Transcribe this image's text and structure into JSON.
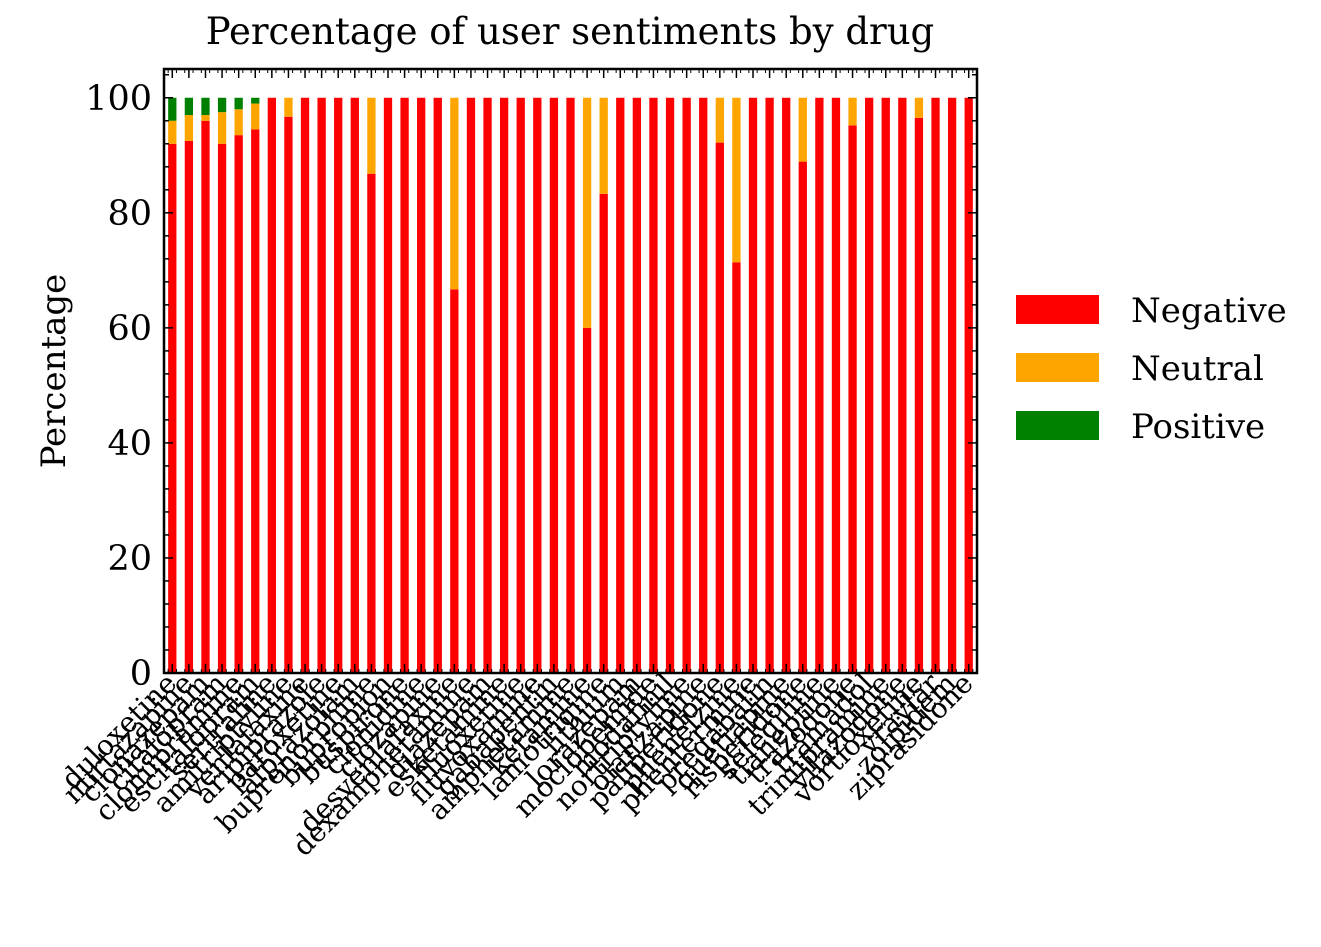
{
  "chart_data": {
    "type": "bar",
    "stacked": true,
    "title": "Percentage of user sentiments by drug",
    "xlabel": "",
    "ylabel": "Percentage",
    "ylim": [
      0,
      105
    ],
    "yticks": [
      0,
      20,
      40,
      60,
      80,
      100
    ],
    "grid": false,
    "legend_position": "right",
    "categories": [
      "duloxetine",
      "mirtazapine",
      "clonazepam",
      "citalopram",
      "clomipramine",
      "escitalopram",
      "sertraline",
      "amitriptyline",
      "venlafaxine",
      "aripiprazole",
      "paroxetine",
      "alprazolam",
      "buprenorphine",
      "bupropion",
      "buspirone",
      "clonidine",
      "clozapine",
      "desvenlafaxine",
      "dexamphetamine",
      "diazepam",
      "esketamine",
      "fluoxetine",
      "fluvoxamine",
      "gabapentin",
      "amphetamine",
      "ketamine",
      "lamotrigine",
      "lithium",
      "lorazepam",
      "moclobemide",
      "modafinil",
      "nortriptyline",
      "olanzapine",
      "paliperidone",
      "phenelzine",
      "phentermine",
      "pregabalin",
      "quetiapine",
      "risperidone",
      "selegiline",
      "tianeptine",
      "trazodone",
      "tramadol",
      "trimipramine",
      "vilazodone",
      "vortioxetine",
      "vraylar",
      "zolpidem",
      "ziprasidone"
    ],
    "series": [
      {
        "name": "Negative",
        "color": "#ff0000",
        "values": [
          92,
          92.5,
          96,
          92,
          93.5,
          94.5,
          100,
          96.7,
          100,
          100,
          100,
          100,
          86.8,
          100,
          100,
          100,
          100,
          66.7,
          100,
          100,
          100,
          100,
          100,
          100,
          100,
          60,
          83.3,
          100,
          100,
          100,
          100,
          100,
          100,
          92.2,
          71.4,
          100,
          100,
          100,
          88.9,
          100,
          100,
          95.2,
          100,
          100,
          100,
          96.5,
          100,
          100,
          100
        ]
      },
      {
        "name": "Neutral",
        "color": "#ffa500",
        "values": [
          4,
          4.5,
          1,
          5.5,
          4.5,
          4.5,
          0,
          3.3,
          0,
          0,
          0,
          0,
          13.2,
          0,
          0,
          0,
          0,
          33.3,
          0,
          0,
          0,
          0,
          0,
          0,
          0,
          40,
          16.7,
          0,
          0,
          0,
          0,
          0,
          0,
          7.8,
          28.6,
          0,
          0,
          0,
          11.1,
          0,
          0,
          4.8,
          0,
          0,
          0,
          3.5,
          0,
          0,
          0
        ]
      },
      {
        "name": "Positive",
        "color": "#008000",
        "values": [
          4,
          3,
          3,
          2.5,
          2,
          1,
          0,
          0,
          0,
          0,
          0,
          0,
          0,
          0,
          0,
          0,
          0,
          0,
          0,
          0,
          0,
          0,
          0,
          0,
          0,
          0,
          0,
          0,
          0,
          0,
          0,
          0,
          0,
          0,
          0,
          0,
          0,
          0,
          0,
          0,
          0,
          0,
          0,
          0,
          0,
          0,
          0,
          0,
          0
        ]
      }
    ]
  }
}
